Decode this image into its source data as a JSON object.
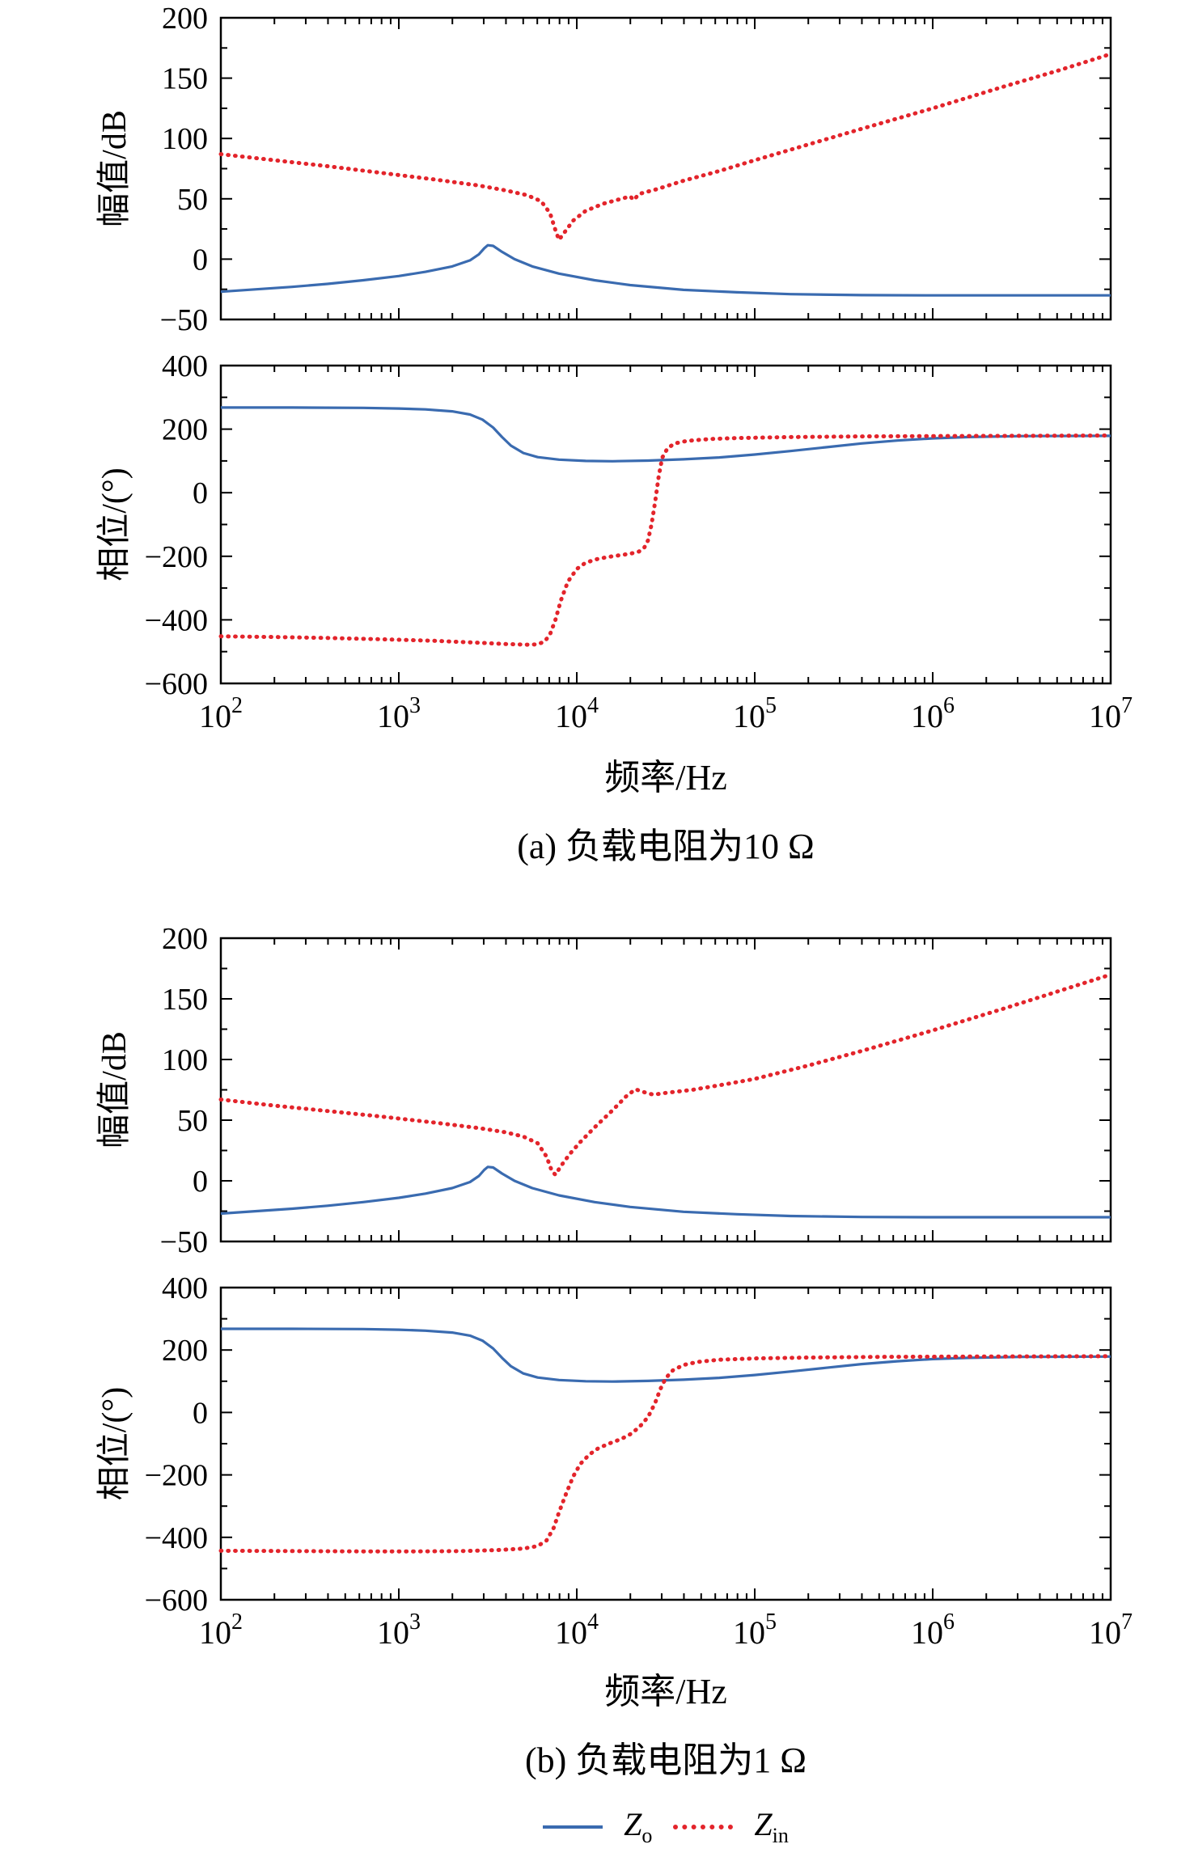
{
  "figures": [
    {
      "caption": "(a) 负载电阻为10 Ω",
      "xlabel": "频率/Hz"
    },
    {
      "caption": "(b) 负载电阻为1 Ω",
      "xlabel": "频率/Hz"
    }
  ],
  "legend": {
    "items": [
      {
        "symbol": "Z",
        "sub": "o",
        "style": "solid",
        "color": "#3A6BB0"
      },
      {
        "symbol": "Z",
        "sub": "in",
        "style": "dotted",
        "color": "#E3242B"
      }
    ]
  },
  "chart_data": [
    {
      "id": "a_mag",
      "type": "line",
      "xscale": "log",
      "xlim": [
        100,
        10000000
      ],
      "xticks_exponents": [
        2,
        3,
        4,
        5,
        6,
        7
      ],
      "show_xtick_labels": false,
      "xlabel": "",
      "ylabel": "幅值/dB",
      "ylim": [
        -50,
        200
      ],
      "yticks": [
        200,
        150,
        100,
        50,
        0,
        -50
      ],
      "series": [
        {
          "name": "Z_o",
          "color": "#3A6BB0",
          "style": "solid",
          "points_logx_y": [
            [
              2,
              -27
            ],
            [
              2.2,
              -25
            ],
            [
              2.4,
              -23
            ],
            [
              2.6,
              -20.5
            ],
            [
              2.8,
              -17.5
            ],
            [
              3.0,
              -14
            ],
            [
              3.15,
              -10.5
            ],
            [
              3.3,
              -6
            ],
            [
              3.4,
              -1
            ],
            [
              3.45,
              4
            ],
            [
              3.48,
              9
            ],
            [
              3.5,
              11.5
            ],
            [
              3.53,
              11
            ],
            [
              3.58,
              6
            ],
            [
              3.65,
              0
            ],
            [
              3.75,
              -6
            ],
            [
              3.9,
              -12
            ],
            [
              4.1,
              -17.5
            ],
            [
              4.3,
              -21.5
            ],
            [
              4.6,
              -25.5
            ],
            [
              4.9,
              -27.5
            ],
            [
              5.2,
              -29
            ],
            [
              5.6,
              -29.8
            ],
            [
              6.0,
              -30
            ],
            [
              6.5,
              -30
            ],
            [
              7,
              -30
            ]
          ]
        },
        {
          "name": "Z_in",
          "color": "#E3242B",
          "style": "dotted",
          "points_logx_y": [
            [
              2,
              87
            ],
            [
              2.3,
              82
            ],
            [
              2.6,
              77
            ],
            [
              2.9,
              71.5
            ],
            [
              3.2,
              66
            ],
            [
              3.45,
              61
            ],
            [
              3.6,
              57
            ],
            [
              3.72,
              53
            ],
            [
              3.8,
              48
            ],
            [
              3.85,
              38
            ],
            [
              3.88,
              24
            ],
            [
              3.9,
              16
            ],
            [
              3.93,
              22
            ],
            [
              3.98,
              32
            ],
            [
              4.05,
              40
            ],
            [
              4.15,
              46
            ],
            [
              4.25,
              50
            ],
            [
              4.3,
              52
            ],
            [
              4.32,
              49
            ],
            [
              4.35,
              54
            ],
            [
              4.45,
              58
            ],
            [
              4.6,
              65
            ],
            [
              4.8,
              73
            ],
            [
              5.0,
              82
            ],
            [
              5.3,
              95
            ],
            [
              5.6,
              108
            ],
            [
              6.0,
              125
            ],
            [
              6.4,
              143
            ],
            [
              6.7,
              156
            ],
            [
              7.0,
              170
            ]
          ]
        }
      ]
    },
    {
      "id": "a_phase",
      "type": "line",
      "xscale": "log",
      "xlim": [
        100,
        10000000
      ],
      "xticks_exponents": [
        2,
        3,
        4,
        5,
        6,
        7
      ],
      "show_xtick_labels": true,
      "xlabel": "频率/Hz",
      "ylabel": "相位/(°)",
      "ylim": [
        -600,
        400
      ],
      "yticks": [
        400,
        200,
        0,
        -200,
        -400,
        -600
      ],
      "series": [
        {
          "name": "Z_o",
          "color": "#3A6BB0",
          "style": "solid",
          "points_logx_y": [
            [
              2,
              268
            ],
            [
              2.4,
              268
            ],
            [
              2.8,
              267
            ],
            [
              3.0,
              265
            ],
            [
              3.15,
              262
            ],
            [
              3.3,
              256
            ],
            [
              3.4,
              246
            ],
            [
              3.47,
              230
            ],
            [
              3.53,
              205
            ],
            [
              3.58,
              175
            ],
            [
              3.63,
              148
            ],
            [
              3.7,
              125
            ],
            [
              3.78,
              112
            ],
            [
              3.9,
              104
            ],
            [
              4.05,
              100
            ],
            [
              4.2,
              99
            ],
            [
              4.4,
              101
            ],
            [
              4.6,
              105
            ],
            [
              4.8,
              111
            ],
            [
              5.0,
              120
            ],
            [
              5.2,
              131
            ],
            [
              5.4,
              143
            ],
            [
              5.6,
              155
            ],
            [
              5.8,
              164
            ],
            [
              6.0,
              171
            ],
            [
              6.2,
              175
            ],
            [
              6.5,
              178
            ],
            [
              7.0,
              179
            ]
          ]
        },
        {
          "name": "Z_in",
          "color": "#E3242B",
          "style": "dotted",
          "points_logx_y": [
            [
              2,
              -452
            ],
            [
              2.3,
              -454
            ],
            [
              2.6,
              -457
            ],
            [
              2.9,
              -461
            ],
            [
              3.2,
              -466
            ],
            [
              3.45,
              -472
            ],
            [
              3.6,
              -476
            ],
            [
              3.72,
              -478
            ],
            [
              3.78,
              -477
            ],
            [
              3.82,
              -468
            ],
            [
              3.85,
              -445
            ],
            [
              3.88,
              -400
            ],
            [
              3.91,
              -340
            ],
            [
              3.95,
              -280
            ],
            [
              4.0,
              -240
            ],
            [
              4.05,
              -220
            ],
            [
              4.12,
              -208
            ],
            [
              4.2,
              -200
            ],
            [
              4.3,
              -192
            ],
            [
              4.35,
              -185
            ],
            [
              4.38,
              -172
            ],
            [
              4.4,
              -150
            ],
            [
              4.42,
              -100
            ],
            [
              4.44,
              -30
            ],
            [
              4.46,
              50
            ],
            [
              4.48,
              110
            ],
            [
              4.51,
              140
            ],
            [
              4.55,
              155
            ],
            [
              4.62,
              163
            ],
            [
              4.75,
              169
            ],
            [
              4.9,
              172
            ],
            [
              5.2,
              175
            ],
            [
              5.6,
              177
            ],
            [
              6.0,
              178
            ],
            [
              6.5,
              179
            ],
            [
              7.0,
              180
            ]
          ]
        }
      ]
    },
    {
      "id": "b_mag",
      "type": "line",
      "xscale": "log",
      "xlim": [
        100,
        10000000
      ],
      "xticks_exponents": [
        2,
        3,
        4,
        5,
        6,
        7
      ],
      "show_xtick_labels": false,
      "xlabel": "",
      "ylabel": "幅值/dB",
      "ylim": [
        -50,
        200
      ],
      "yticks": [
        200,
        150,
        100,
        50,
        0,
        -50
      ],
      "series": [
        {
          "name": "Z_o",
          "color": "#3A6BB0",
          "style": "solid",
          "points_logx_y": [
            [
              2,
              -27
            ],
            [
              2.2,
              -25
            ],
            [
              2.4,
              -23
            ],
            [
              2.6,
              -20.5
            ],
            [
              2.8,
              -17.5
            ],
            [
              3.0,
              -14
            ],
            [
              3.15,
              -10.5
            ],
            [
              3.3,
              -6
            ],
            [
              3.4,
              -1
            ],
            [
              3.45,
              4
            ],
            [
              3.48,
              9
            ],
            [
              3.5,
              11.5
            ],
            [
              3.53,
              11
            ],
            [
              3.58,
              6
            ],
            [
              3.65,
              0
            ],
            [
              3.75,
              -6
            ],
            [
              3.9,
              -12
            ],
            [
              4.1,
              -17.5
            ],
            [
              4.3,
              -21.5
            ],
            [
              4.6,
              -25.5
            ],
            [
              4.9,
              -27.5
            ],
            [
              5.2,
              -29
            ],
            [
              5.6,
              -29.8
            ],
            [
              6.0,
              -30
            ],
            [
              6.5,
              -30
            ],
            [
              7,
              -30
            ]
          ]
        },
        {
          "name": "Z_in",
          "color": "#E3242B",
          "style": "dotted",
          "points_logx_y": [
            [
              2,
              67
            ],
            [
              2.3,
              62
            ],
            [
              2.6,
              57.5
            ],
            [
              2.9,
              53
            ],
            [
              3.2,
              48
            ],
            [
              3.45,
              43.5
            ],
            [
              3.6,
              40
            ],
            [
              3.7,
              36.5
            ],
            [
              3.78,
              31
            ],
            [
              3.83,
              20
            ],
            [
              3.86,
              8
            ],
            [
              3.88,
              5
            ],
            [
              3.91,
              12
            ],
            [
              3.96,
              22
            ],
            [
              4.02,
              32
            ],
            [
              4.1,
              44
            ],
            [
              4.2,
              58
            ],
            [
              4.28,
              70
            ],
            [
              4.33,
              75.5
            ],
            [
              4.38,
              73
            ],
            [
              4.43,
              71
            ],
            [
              4.5,
              72.5
            ],
            [
              4.65,
              75
            ],
            [
              4.85,
              80
            ],
            [
              5.0,
              84
            ],
            [
              5.3,
              95
            ],
            [
              5.6,
              107
            ],
            [
              6.0,
              124
            ],
            [
              6.4,
              142
            ],
            [
              6.7,
              156
            ],
            [
              7.0,
              170
            ]
          ]
        }
      ]
    },
    {
      "id": "b_phase",
      "type": "line",
      "xscale": "log",
      "xlim": [
        100,
        10000000
      ],
      "xticks_exponents": [
        2,
        3,
        4,
        5,
        6,
        7
      ],
      "show_xtick_labels": true,
      "xlabel": "频率/Hz",
      "ylabel": "相位/(°)",
      "ylim": [
        -600,
        400
      ],
      "yticks": [
        400,
        200,
        0,
        -200,
        -400,
        -600
      ],
      "series": [
        {
          "name": "Z_o",
          "color": "#3A6BB0",
          "style": "solid",
          "points_logx_y": [
            [
              2,
              268
            ],
            [
              2.4,
              268
            ],
            [
              2.8,
              267
            ],
            [
              3.0,
              265
            ],
            [
              3.15,
              262
            ],
            [
              3.3,
              256
            ],
            [
              3.4,
              246
            ],
            [
              3.47,
              230
            ],
            [
              3.53,
              205
            ],
            [
              3.58,
              175
            ],
            [
              3.63,
              148
            ],
            [
              3.7,
              125
            ],
            [
              3.78,
              112
            ],
            [
              3.9,
              104
            ],
            [
              4.05,
              100
            ],
            [
              4.2,
              99
            ],
            [
              4.4,
              101
            ],
            [
              4.6,
              105
            ],
            [
              4.8,
              111
            ],
            [
              5.0,
              120
            ],
            [
              5.2,
              131
            ],
            [
              5.4,
              143
            ],
            [
              5.6,
              155
            ],
            [
              5.8,
              164
            ],
            [
              6.0,
              171
            ],
            [
              6.2,
              175
            ],
            [
              6.5,
              178
            ],
            [
              7.0,
              179
            ]
          ]
        },
        {
          "name": "Z_in",
          "color": "#E3242B",
          "style": "dotted",
          "points_logx_y": [
            [
              2,
              -443
            ],
            [
              2.4,
              -444
            ],
            [
              2.8,
              -445
            ],
            [
              3.1,
              -445
            ],
            [
              3.35,
              -444
            ],
            [
              3.55,
              -441
            ],
            [
              3.7,
              -436
            ],
            [
              3.78,
              -428
            ],
            [
              3.83,
              -410
            ],
            [
              3.87,
              -370
            ],
            [
              3.9,
              -320
            ],
            [
              3.94,
              -260
            ],
            [
              3.98,
              -205
            ],
            [
              4.02,
              -165
            ],
            [
              4.07,
              -135
            ],
            [
              4.12,
              -115
            ],
            [
              4.18,
              -100
            ],
            [
              4.25,
              -85
            ],
            [
              4.3,
              -70
            ],
            [
              4.35,
              -48
            ],
            [
              4.4,
              -15
            ],
            [
              4.44,
              30
            ],
            [
              4.47,
              75
            ],
            [
              4.5,
              110
            ],
            [
              4.54,
              135
            ],
            [
              4.6,
              152
            ],
            [
              4.68,
              162
            ],
            [
              4.8,
              169
            ],
            [
              5.0,
              173
            ],
            [
              5.3,
              176
            ],
            [
              5.7,
              178
            ],
            [
              6.2,
              179
            ],
            [
              7.0,
              180
            ]
          ]
        }
      ]
    }
  ]
}
